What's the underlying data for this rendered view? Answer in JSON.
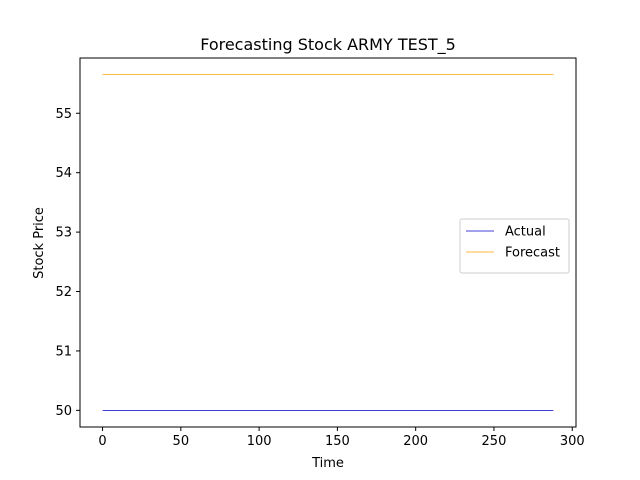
{
  "chart_data": {
    "type": "line",
    "title": "Forecasting Stock ARMY TEST_5",
    "xlabel": "Time",
    "ylabel": "Stock Price",
    "xlim": [
      -14.4,
      302.4
    ],
    "ylim": [
      49.72,
      55.93
    ],
    "xticks": [
      0,
      50,
      100,
      150,
      200,
      250,
      300
    ],
    "yticks": [
      50,
      51,
      52,
      53,
      54,
      55
    ],
    "grid": false,
    "legend_position": "center-right",
    "series": [
      {
        "name": "Actual",
        "color": "#0000cc",
        "x": [
          0,
          288
        ],
        "values": [
          50.0,
          50.0
        ]
      },
      {
        "name": "Forecast",
        "color": "#ffa500",
        "x": [
          0,
          288
        ],
        "values": [
          55.65,
          55.65
        ]
      }
    ]
  }
}
